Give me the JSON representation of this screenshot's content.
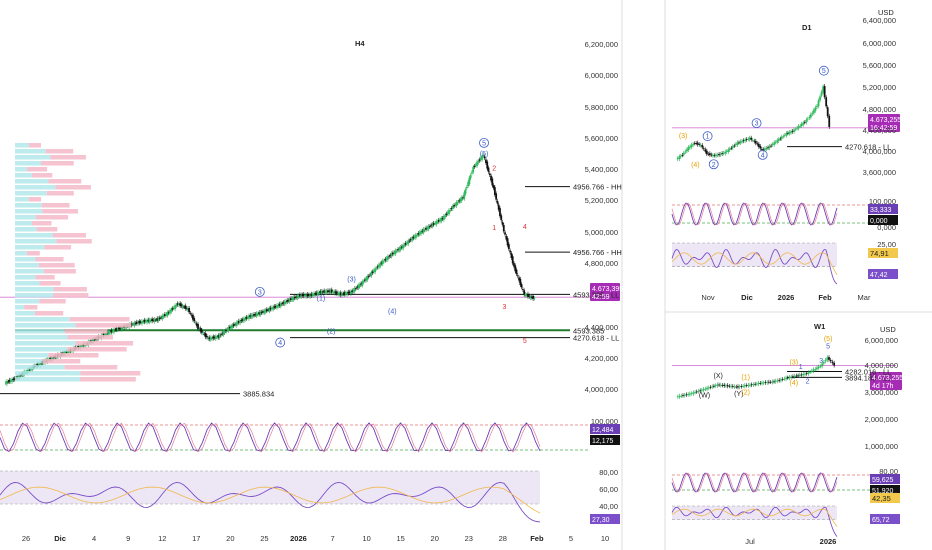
{
  "chart_data": [
    {
      "type": "line",
      "title": "H4",
      "currency": "",
      "x_ticks": [
        "26",
        "Dic",
        "4",
        "9",
        "12",
        "17",
        "20",
        "25",
        "2026",
        "7",
        "10",
        "15",
        "20",
        "23",
        "28",
        "Feb",
        "5",
        "10"
      ],
      "price_ticks": [
        "6,200,000",
        "6,000,000",
        "5,800,000",
        "5,600,000",
        "5,400,000",
        "5,200,000",
        "5,000,000",
        "4,800,000",
        "4,400,000",
        "4,200,000",
        "4,000,000"
      ],
      "ylim": [
        3700000,
        6350000
      ],
      "series": [
        {
          "values": [
            3860000,
            3900000,
            3960000,
            4020000,
            4070000,
            4110000,
            4150000,
            4190000,
            4230000,
            4280000,
            4330000,
            4370000,
            4400000,
            4430000,
            4450000,
            4460000,
            4520000,
            4610000,
            4560000,
            4380000,
            4280000,
            4300000,
            4380000,
            4440000,
            4490000,
            4520000,
            4560000,
            4600000,
            4650000,
            4690000,
            4690000,
            4720000,
            4730000,
            4700000,
            4720000,
            4800000,
            4900000,
            5000000,
            5080000,
            5150000,
            5230000,
            5300000,
            5360000,
            5420000,
            5530000,
            5620000,
            5900000,
            6020000,
            5700000,
            5300000,
            4960000,
            4700000,
            4660000
          ]
        }
      ],
      "levels": [
        {
          "label": "4956.766 - HH",
          "value": 5720000
        },
        {
          "label": "4956.766 - HH",
          "value": 5100000
        },
        {
          "label": "4593.385 - LL",
          "value": 4700000
        },
        {
          "label": "4593.385",
          "value": 4360000
        },
        {
          "label": "4270.618 - LL",
          "value": 4290000
        },
        {
          "label": "3885.834",
          "value": 3760000
        }
      ],
      "waves": [
        {
          "label": "5",
          "x": 47,
          "value": 6110000,
          "color": "#3a5bc7",
          "circled": true
        },
        {
          "label": "(5)",
          "x": 47,
          "value": 6010000,
          "color": "#3a5bc7",
          "circled": false
        },
        {
          "label": "2",
          "x": 48,
          "value": 5870000,
          "color": "#d33",
          "circled": false
        },
        {
          "label": "1",
          "x": 48,
          "value": 5310000,
          "color": "#d33",
          "circled": false
        },
        {
          "label": "4",
          "x": 51,
          "value": 5320000,
          "color": "#d33",
          "circled": false
        },
        {
          "label": "3",
          "x": 49,
          "value": 4560000,
          "color": "#d33",
          "circled": false
        },
        {
          "label": "5",
          "x": 51,
          "value": 4240000,
          "color": "#d33",
          "circled": false
        },
        {
          "label": "3",
          "x": 25,
          "value": 4700000,
          "color": "#3a5bc7",
          "circled": true
        },
        {
          "label": "4",
          "x": 27,
          "value": 4220000,
          "color": "#3a5bc7",
          "circled": true
        },
        {
          "label": "(1)",
          "x": 31,
          "value": 4640000,
          "color": "#3a5bc7",
          "circled": false
        },
        {
          "label": "(2)",
          "x": 32,
          "value": 4330000,
          "color": "#3a5bc7",
          "circled": false
        },
        {
          "label": "(3)",
          "x": 34,
          "value": 4820000,
          "color": "#3a5bc7",
          "circled": false
        },
        {
          "label": "(4)",
          "x": 38,
          "value": 4520000,
          "color": "#3a5bc7",
          "circled": false
        }
      ],
      "current_price": "4.673,395",
      "countdown": "42:59",
      "stoch": {
        "ticks": [
          "100,000"
        ],
        "values": [
          "12,484",
          "12,175"
        ]
      },
      "rsi": {
        "ticks": [
          "80,00",
          "60,00",
          "40,00"
        ],
        "value": "27,30"
      }
    },
    {
      "type": "line",
      "title": "D1",
      "currency": "USD",
      "x_ticks": [
        "Nov",
        "Dic",
        "2026",
        "Feb",
        "Mar"
      ],
      "price_ticks": [
        "6,400,000",
        "6,000,000",
        "5,600,000",
        "5,200,000",
        "4,800,000",
        "4,400,000",
        "4,000,000",
        "3,600,000"
      ],
      "ylim": [
        3450000,
        6550000
      ],
      "series": [
        {
          "values": [
            4000000,
            4100000,
            4250000,
            4350000,
            4300000,
            4120000,
            4080000,
            4100000,
            4150000,
            4250000,
            4350000,
            4400000,
            4450000,
            4350000,
            4200000,
            4250000,
            4350000,
            4450000,
            4550000,
            4600000,
            4700000,
            4800000,
            4950000,
            5150000,
            5550000,
            4700000
          ]
        }
      ],
      "levels": [
        {
          "label": "4270.618 - LL",
          "value": 4270000
        }
      ],
      "waves": [
        {
          "label": "(3)",
          "x": 1,
          "value": 4450000,
          "color": "#e8a000",
          "circled": false
        },
        {
          "label": "(4)",
          "x": 3,
          "value": 3840000,
          "color": "#e8a000",
          "circled": false
        },
        {
          "label": "1",
          "x": 5,
          "value": 4440000,
          "color": "#3a5bc7",
          "circled": true
        },
        {
          "label": "2",
          "x": 6,
          "value": 3840000,
          "color": "#3a5bc7",
          "circled": true
        },
        {
          "label": "3",
          "x": 13,
          "value": 4720000,
          "color": "#3a5bc7",
          "circled": true
        },
        {
          "label": "4",
          "x": 14,
          "value": 4040000,
          "color": "#3a5bc7",
          "circled": true
        },
        {
          "label": "5",
          "x": 24,
          "value": 5840000,
          "color": "#3a5bc7",
          "circled": true
        }
      ],
      "current_price": "4.673,255",
      "countdown": "16:42:59",
      "stoch": {
        "ticks": [
          "100,000",
          "0,000"
        ],
        "values": [
          "33,333",
          "0,000"
        ]
      },
      "rsi": {
        "ticks": [
          "25,00"
        ],
        "values": [
          "74,91",
          "47,42"
        ]
      }
    },
    {
      "type": "line",
      "title": "W1",
      "currency": "USD",
      "x_ticks": [
        "Jul",
        "2026"
      ],
      "price_ticks": [
        "6,000,000",
        "4,000,000",
        "3,000,000",
        "2,000,000",
        "1,000,000"
      ],
      "ylim": [
        400000,
        6700000
      ],
      "series": [
        {
          "values": [
            2600000,
            2700000,
            2800000,
            2950000,
            3100000,
            3250000,
            3400000,
            3350000,
            3300000,
            3250000,
            3350000,
            3400000,
            3500000,
            3550000,
            3600000,
            3700000,
            3850000,
            3950000,
            4050000,
            4150000,
            4400000,
            4650000,
            5200000,
            4700000
          ]
        }
      ],
      "levels": [
        {
          "label": "4282.016 - LL",
          "value": 4280000
        },
        {
          "label": "3894.180 - LL",
          "value": 3890000
        }
      ],
      "waves": [
        {
          "label": "(X)",
          "x": 6,
          "value": 3850000,
          "color": "#222",
          "circled": false
        },
        {
          "label": "(W)",
          "x": 4,
          "value": 2550000,
          "color": "#222",
          "circled": false
        },
        {
          "label": "(Y)",
          "x": 9,
          "value": 2650000,
          "color": "#222",
          "circled": false
        },
        {
          "label": "(1)",
          "x": 10,
          "value": 3750000,
          "color": "#e8a000",
          "circled": false
        },
        {
          "label": "(2)",
          "x": 10,
          "value": 2750000,
          "color": "#e8a000",
          "circled": false
        },
        {
          "label": "(3)",
          "x": 17,
          "value": 4750000,
          "color": "#e8a000",
          "circled": false
        },
        {
          "label": "(4)",
          "x": 17,
          "value": 3400000,
          "color": "#e8a000",
          "circled": false
        },
        {
          "label": "1",
          "x": 18,
          "value": 4450000,
          "color": "#3a5bc7",
          "circled": false
        },
        {
          "label": "2",
          "x": 19,
          "value": 3500000,
          "color": "#3a5bc7",
          "circled": false
        },
        {
          "label": "3",
          "x": 21,
          "value": 4850000,
          "color": "#3a5bc7",
          "circled": false
        },
        {
          "label": "(5)",
          "x": 22,
          "value": 6300000,
          "color": "#e8a000",
          "circled": false
        },
        {
          "label": "5",
          "x": 22,
          "value": 5800000,
          "color": "#3a5bc7",
          "circled": false
        }
      ],
      "current_price": "4.673,255",
      "countdown": "4d 17h",
      "stoch": {
        "ticks": [
          "80,00",
          "0,000"
        ],
        "values": [
          "59,625",
          "51,920"
        ]
      },
      "rsi": {
        "values": [
          "42,35",
          "65,72"
        ]
      }
    }
  ]
}
